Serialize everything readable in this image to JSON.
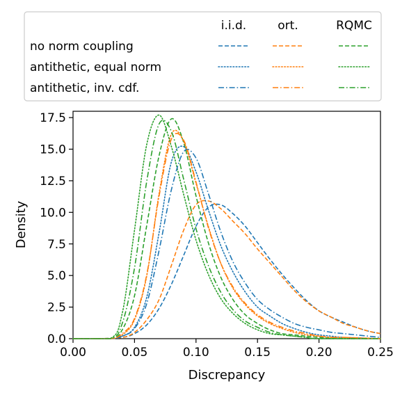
{
  "chart_data": {
    "type": "line",
    "xlabel": "Discrepancy",
    "ylabel": "Density",
    "xlim": [
      0.0,
      0.25
    ],
    "ylim": [
      0.0,
      18.0
    ],
    "x_ticks": [
      "0.00",
      "0.05",
      "0.10",
      "0.15",
      "0.20",
      "0.25"
    ],
    "y_ticks": [
      "0.0",
      "2.5",
      "5.0",
      "7.5",
      "10.0",
      "12.5",
      "15.0",
      "17.5"
    ],
    "grid": false,
    "legend": {
      "placement": "top",
      "column_headers": [
        "i.i.d.",
        "ort.",
        "RQMC"
      ],
      "row_labels": [
        "no norm coupling",
        "antithetic, equal norm",
        "antithetic, inv. cdf."
      ]
    },
    "colors": {
      "i.i.d.": "#1f77b4",
      "ort.": "#ff7f0e",
      "RQMC": "#2ca02c"
    },
    "line_styles": {
      "no norm coupling": "dashed",
      "antithetic, equal norm": "dotted",
      "antithetic, inv. cdf.": "dash-dot"
    },
    "series": [
      {
        "sampler": "i.i.d.",
        "coupling": "no norm coupling",
        "x": [
          0.0,
          0.02,
          0.04,
          0.05,
          0.06,
          0.07,
          0.08,
          0.09,
          0.1,
          0.11,
          0.12,
          0.13,
          0.14,
          0.15,
          0.16,
          0.17,
          0.18,
          0.19,
          0.2,
          0.21,
          0.22,
          0.23,
          0.24,
          0.25
        ],
        "y": [
          0,
          0.0,
          0.1,
          0.4,
          1.1,
          2.4,
          4.3,
          6.6,
          8.9,
          10.4,
          10.6,
          9.9,
          8.9,
          7.6,
          6.3,
          5.1,
          4.0,
          3.0,
          2.2,
          1.7,
          1.3,
          0.9,
          0.6,
          0.4
        ]
      },
      {
        "sampler": "ort.",
        "coupling": "no norm coupling",
        "x": [
          0.0,
          0.02,
          0.04,
          0.05,
          0.06,
          0.07,
          0.08,
          0.09,
          0.1,
          0.11,
          0.12,
          0.13,
          0.14,
          0.15,
          0.16,
          0.17,
          0.18,
          0.19,
          0.2,
          0.21,
          0.22,
          0.23,
          0.24,
          0.25
        ],
        "y": [
          0,
          0.0,
          0.1,
          0.5,
          1.5,
          3.1,
          5.8,
          8.6,
          10.6,
          10.9,
          10.3,
          9.3,
          8.3,
          7.1,
          6.0,
          4.9,
          3.8,
          2.9,
          2.2,
          1.7,
          1.2,
          0.9,
          0.6,
          0.4
        ]
      },
      {
        "sampler": "RQMC",
        "coupling": "no norm coupling",
        "x": [
          0.0,
          0.03,
          0.04,
          0.05,
          0.06,
          0.07,
          0.08,
          0.09,
          0.1,
          0.11,
          0.12,
          0.13,
          0.14,
          0.15,
          0.16,
          0.17,
          0.18,
          0.19,
          0.2,
          0.22,
          0.25
        ],
        "y": [
          0,
          0.0,
          0.7,
          3.4,
          9.0,
          14.5,
          17.4,
          15.5,
          11.3,
          7.6,
          4.9,
          3.1,
          1.9,
          1.2,
          0.7,
          0.4,
          0.3,
          0.2,
          0.1,
          0.0,
          0.0
        ]
      },
      {
        "sampler": "i.i.d.",
        "coupling": "antithetic, equal norm",
        "x": [
          0.0,
          0.03,
          0.04,
          0.05,
          0.06,
          0.07,
          0.08,
          0.09,
          0.1,
          0.11,
          0.12,
          0.13,
          0.14,
          0.15,
          0.16,
          0.17,
          0.18,
          0.19,
          0.2,
          0.21,
          0.22,
          0.25
        ],
        "y": [
          0,
          0.0,
          0.2,
          0.9,
          3.3,
          8.4,
          14.0,
          15.2,
          13.2,
          10.2,
          7.4,
          5.3,
          3.7,
          2.5,
          1.8,
          1.2,
          0.8,
          0.5,
          0.3,
          0.2,
          0.1,
          0.0
        ]
      },
      {
        "sampler": "ort.",
        "coupling": "antithetic, equal norm",
        "x": [
          0.0,
          0.03,
          0.04,
          0.05,
          0.06,
          0.07,
          0.08,
          0.09,
          0.1,
          0.11,
          0.12,
          0.13,
          0.14,
          0.15,
          0.16,
          0.17,
          0.18,
          0.19,
          0.2,
          0.21,
          0.22,
          0.25
        ],
        "y": [
          0,
          0.0,
          0.3,
          1.5,
          5.0,
          11.5,
          16.2,
          15.6,
          12.3,
          8.9,
          6.0,
          4.0,
          2.7,
          1.8,
          1.2,
          0.8,
          0.5,
          0.3,
          0.2,
          0.1,
          0.1,
          0.0
        ]
      },
      {
        "sampler": "RQMC",
        "coupling": "antithetic, equal norm",
        "x": [
          0.0,
          0.03,
          0.04,
          0.05,
          0.06,
          0.07,
          0.08,
          0.09,
          0.1,
          0.11,
          0.12,
          0.13,
          0.14,
          0.15,
          0.16,
          0.17,
          0.18,
          0.19,
          0.2,
          0.25
        ],
        "y": [
          0,
          0.0,
          2.0,
          8.6,
          15.4,
          17.7,
          15.2,
          11.4,
          7.8,
          5.1,
          3.2,
          2.0,
          1.2,
          0.7,
          0.4,
          0.3,
          0.2,
          0.1,
          0.0,
          0.0
        ]
      },
      {
        "sampler": "i.i.d.",
        "coupling": "antithetic, inv. cdf.",
        "x": [
          0.0,
          0.03,
          0.04,
          0.05,
          0.06,
          0.07,
          0.08,
          0.09,
          0.1,
          0.11,
          0.12,
          0.13,
          0.14,
          0.15,
          0.16,
          0.17,
          0.18,
          0.19,
          0.2,
          0.21,
          0.22,
          0.23,
          0.24,
          0.25
        ],
        "y": [
          0,
          0.0,
          0.2,
          0.8,
          2.8,
          7.0,
          11.8,
          14.8,
          14.3,
          11.5,
          8.5,
          6.1,
          4.4,
          3.1,
          2.3,
          1.7,
          1.2,
          0.9,
          0.7,
          0.5,
          0.4,
          0.3,
          0.2,
          0.1
        ]
      },
      {
        "sampler": "ort.",
        "coupling": "antithetic, inv. cdf.",
        "x": [
          0.0,
          0.03,
          0.04,
          0.05,
          0.06,
          0.07,
          0.08,
          0.09,
          0.1,
          0.11,
          0.12,
          0.13,
          0.14,
          0.15,
          0.16,
          0.17,
          0.18,
          0.19,
          0.2,
          0.21,
          0.22,
          0.25
        ],
        "y": [
          0,
          0.0,
          0.4,
          1.6,
          5.1,
          11.3,
          15.8,
          15.7,
          12.4,
          8.8,
          6.0,
          4.1,
          2.8,
          1.9,
          1.3,
          0.9,
          0.6,
          0.4,
          0.2,
          0.1,
          0.1,
          0.0
        ]
      },
      {
        "sampler": "RQMC",
        "coupling": "antithetic, inv. cdf.",
        "x": [
          0.0,
          0.03,
          0.04,
          0.05,
          0.06,
          0.07,
          0.08,
          0.09,
          0.1,
          0.11,
          0.12,
          0.13,
          0.14,
          0.15,
          0.16,
          0.17,
          0.18,
          0.19,
          0.2,
          0.25
        ],
        "y": [
          0,
          0.0,
          1.2,
          5.6,
          12.5,
          17.0,
          16.4,
          12.6,
          8.7,
          5.8,
          3.7,
          2.3,
          1.4,
          0.9,
          0.5,
          0.3,
          0.2,
          0.1,
          0.0,
          0.0
        ]
      }
    ]
  }
}
